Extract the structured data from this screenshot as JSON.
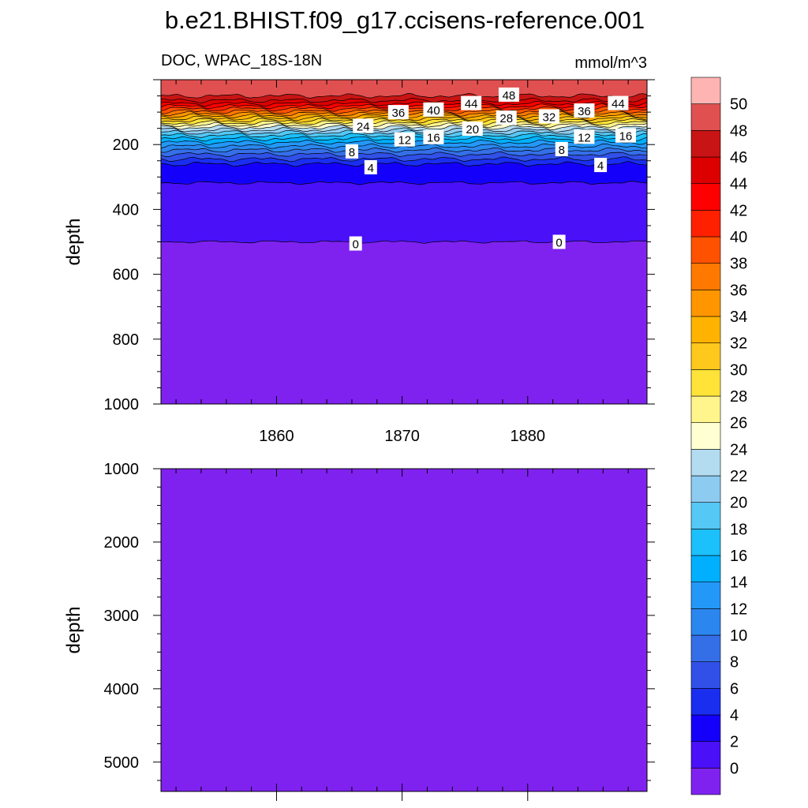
{
  "chart_data": {
    "type": "contour",
    "title": "b.e21.BHIST.f09_g17.ccisens-reference.001",
    "left_subtitle": "DOC, WPAC_18S-18N",
    "right_subtitle": "mmol/m^3",
    "x_range": [
      1850.8,
      1889.5
    ],
    "x_ticks": [
      1860,
      1870,
      1880
    ],
    "panels": [
      {
        "ylabel": "depth",
        "ylim": [
          0,
          1000
        ],
        "y_ticks": [
          200,
          400,
          600,
          800,
          1000
        ]
      },
      {
        "ylabel": "depth",
        "ylim": [
          1000,
          5400
        ],
        "y_ticks": [
          1000,
          2000,
          3000,
          4000,
          5000
        ]
      }
    ],
    "colorbar": {
      "levels": [
        0,
        2,
        4,
        6,
        8,
        10,
        12,
        14,
        16,
        18,
        20,
        22,
        24,
        26,
        28,
        30,
        32,
        34,
        36,
        38,
        40,
        42,
        44,
        46,
        48,
        50
      ],
      "colors": [
        "#7f22f0",
        "#4a10f8",
        "#1400fa",
        "#1a2ef0",
        "#3050e8",
        "#356fe8",
        "#2b87ef",
        "#2498f8",
        "#00b0ff",
        "#1cc0fa",
        "#55c8f5",
        "#8ecbf0",
        "#b4dcf0",
        "#ffffd2",
        "#fff58c",
        "#ffe338",
        "#ffc81c",
        "#ffb300",
        "#ff9600",
        "#ff7800",
        "#ff5200",
        "#ff2000",
        "#ff0000",
        "#dc0000",
        "#c81414",
        "#e05050",
        "#ffb4b4"
      ]
    },
    "depth_profile": [
      {
        "value": 0,
        "depth": 500
      },
      {
        "value": 2,
        "depth": 318
      },
      {
        "value": 4,
        "depth": 260
      },
      {
        "value": 6,
        "depth": 245
      },
      {
        "value": 8,
        "depth": 230
      },
      {
        "value": 10,
        "depth": 217
      },
      {
        "value": 12,
        "depth": 205
      },
      {
        "value": 14,
        "depth": 193
      },
      {
        "value": 16,
        "depth": 182
      },
      {
        "value": 18,
        "depth": 172
      },
      {
        "value": 20,
        "depth": 163
      },
      {
        "value": 22,
        "depth": 155
      },
      {
        "value": 24,
        "depth": 147
      },
      {
        "value": 26,
        "depth": 140
      },
      {
        "value": 28,
        "depth": 133
      },
      {
        "value": 30,
        "depth": 126
      },
      {
        "value": 32,
        "depth": 119
      },
      {
        "value": 34,
        "depth": 112
      },
      {
        "value": 36,
        "depth": 105
      },
      {
        "value": 38,
        "depth": 98
      },
      {
        "value": 40,
        "depth": 90
      },
      {
        "value": 42,
        "depth": 82
      },
      {
        "value": 44,
        "depth": 74
      },
      {
        "value": 46,
        "depth": 64
      },
      {
        "value": 48,
        "depth": 50
      }
    ],
    "contour_labels": [
      {
        "text": "48",
        "x": 1878.5,
        "depth": 46
      },
      {
        "text": "44",
        "x": 1875.5,
        "depth": 72
      },
      {
        "text": "44",
        "x": 1887.2,
        "depth": 72
      },
      {
        "text": "40",
        "x": 1872.5,
        "depth": 92
      },
      {
        "text": "36",
        "x": 1869.7,
        "depth": 100
      },
      {
        "text": "36",
        "x": 1884.5,
        "depth": 95
      },
      {
        "text": "32",
        "x": 1881.7,
        "depth": 113
      },
      {
        "text": "28",
        "x": 1878.3,
        "depth": 117
      },
      {
        "text": "24",
        "x": 1866.9,
        "depth": 142
      },
      {
        "text": "20",
        "x": 1875.6,
        "depth": 151
      },
      {
        "text": "16",
        "x": 1872.5,
        "depth": 177
      },
      {
        "text": "16",
        "x": 1887.8,
        "depth": 172
      },
      {
        "text": "12",
        "x": 1870.2,
        "depth": 184
      },
      {
        "text": "12",
        "x": 1884.5,
        "depth": 176
      },
      {
        "text": "8",
        "x": 1866.0,
        "depth": 221
      },
      {
        "text": "8",
        "x": 1882.7,
        "depth": 214
      },
      {
        "text": "4",
        "x": 1867.5,
        "depth": 270
      },
      {
        "text": "4",
        "x": 1885.8,
        "depth": 263
      },
      {
        "text": "0",
        "x": 1866.3,
        "depth": 505
      },
      {
        "text": "0",
        "x": 1882.5,
        "depth": 500
      }
    ]
  }
}
